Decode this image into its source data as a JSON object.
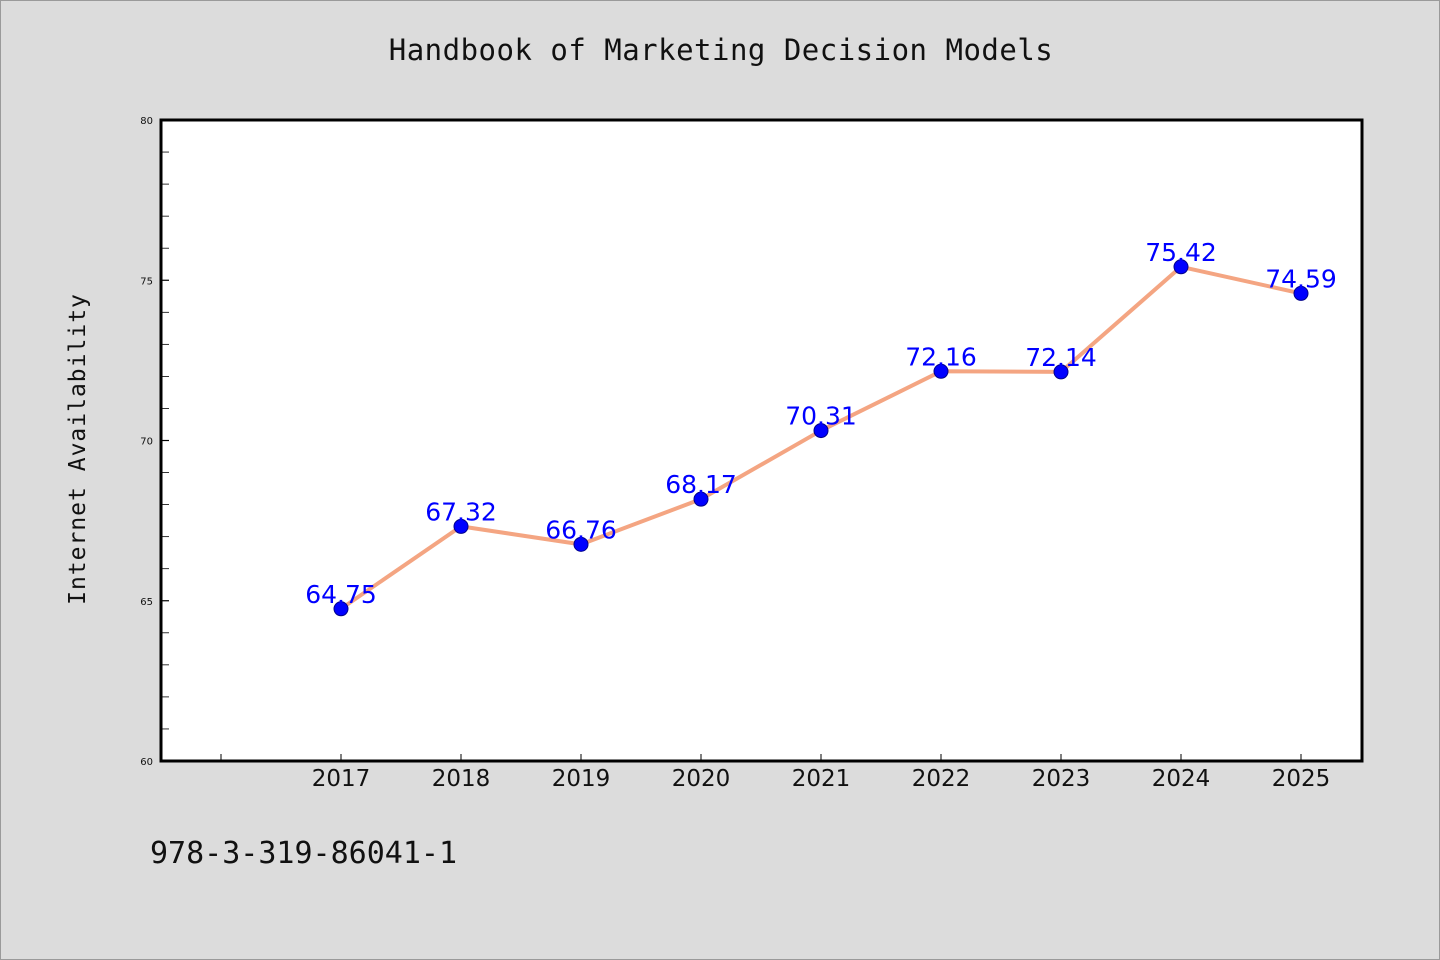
{
  "title": "Handbook of Marketing Decision Models",
  "footer_text": "978-3-319-86041-1",
  "colors": {
    "background": "#dcdcdc",
    "plot_area": "#ffffff",
    "line": "#f4a582",
    "marker": "#0000ff",
    "data_label": "#0000ff"
  },
  "chart_data": {
    "type": "line",
    "title": "Handbook of Marketing Decision Models",
    "xlabel": "",
    "ylabel": "Internet Availability",
    "x": [
      "2017",
      "2018",
      "2019",
      "2020",
      "2021",
      "2022",
      "2023",
      "2024",
      "2025"
    ],
    "series": [
      {
        "values": [
          64.75,
          67.32,
          66.76,
          68.17,
          70.31,
          72.16,
          72.14,
          75.42,
          74.59
        ],
        "labels": [
          "64.75",
          "67.32",
          "66.76",
          "68.17",
          "70.31",
          "72.16",
          "72.14",
          "75.42",
          "74.59"
        ]
      }
    ],
    "ylim": [
      60,
      80
    ],
    "y_major_ticks": [
      60,
      65,
      70,
      75,
      80
    ],
    "y_tick_labels": [
      "60",
      "65",
      "70",
      "75",
      "80"
    ],
    "y_minor_step": 1,
    "grid": false,
    "legend": "none",
    "markers": "circle"
  }
}
